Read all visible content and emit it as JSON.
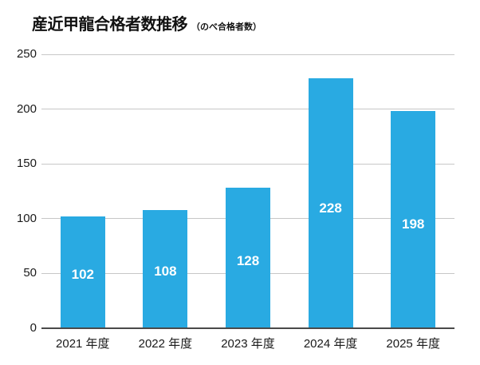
{
  "page": {
    "background": "#ffffff"
  },
  "chart_data": {
    "type": "bar",
    "title": "産近甲龍合格者数推移",
    "subtitle": "（のべ合格者数）",
    "categories": [
      "2021 年度",
      "2022 年度",
      "2023 年度",
      "2024 年度",
      "2025 年度"
    ],
    "values": [
      102,
      108,
      128,
      228,
      198
    ],
    "xlabel": "",
    "ylabel": "",
    "ylim": [
      0,
      250
    ],
    "yticks": [
      0,
      50,
      100,
      150,
      200,
      250
    ],
    "grid": true,
    "legend": "none",
    "value_labels_inside_bars": true,
    "colors": {
      "bar": "#29aae2",
      "grid_line": "#c7c7c7",
      "axis_line": "#4a4a4a",
      "tick_text": "#1a1a1a",
      "title_text": "#111111",
      "value_label_text": "#ffffff"
    }
  }
}
